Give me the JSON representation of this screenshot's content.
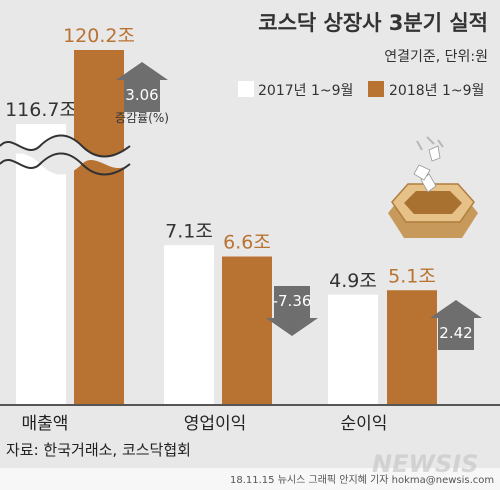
{
  "header": {
    "title": "코스닥 상장사 3분기 실적",
    "subtitle": "연결기준, 단위:원"
  },
  "legend": [
    {
      "label": "2017년 1~9월",
      "color": "#ffffff"
    },
    {
      "label": "2018년 1~9월",
      "color": "#b87333"
    }
  ],
  "change_label": "증감률(%)",
  "source": "자료: 한국거래소, 코스닥협회",
  "footer": {
    "byline": "18.11.15 뉴시스 그래픽 안지혜 기자 hokma@newsis.com",
    "watermark": "NEWSIS"
  },
  "chart_data": {
    "type": "bar",
    "title": "코스닥 상장사 3분기 실적",
    "subtitle": "연결기준, 단위:원",
    "categories": [
      "매출액",
      "영업이익",
      "순이익"
    ],
    "series": [
      {
        "name": "2017년 1~9월",
        "values": [
          116.7,
          7.1,
          4.9
        ],
        "labels": [
          "116.7조",
          "7.1조",
          "4.9조"
        ],
        "color": "#ffffff"
      },
      {
        "name": "2018년 1~9월",
        "values": [
          120.2,
          6.6,
          5.1
        ],
        "labels": [
          "120.2조",
          "6.6조",
          "5.1조"
        ],
        "color": "#b87333"
      }
    ],
    "change_pct": [
      3.06,
      -7.36,
      2.42
    ],
    "change_labels": [
      "3.06",
      "-7.36",
      "2.42"
    ],
    "axis_break": true,
    "grid": false,
    "legend_position": "top-right"
  }
}
